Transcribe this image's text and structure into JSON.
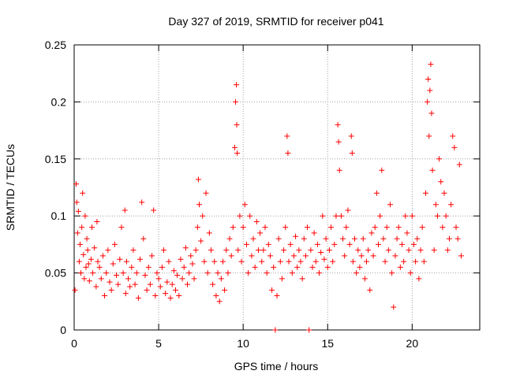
{
  "chart_data": {
    "type": "scatter",
    "title": "Day 327 of 2019, SRMTID for receiver p041",
    "xlabel": "GPS time / hours",
    "ylabel": "SRMTID / TECUs",
    "xlim": [
      0,
      24
    ],
    "ylim": [
      0,
      0.25
    ],
    "x_ticks": [
      0,
      5,
      10,
      15,
      20
    ],
    "x_tick_labels": [
      "0",
      "5",
      "10",
      "15",
      "20"
    ],
    "y_ticks": [
      0,
      0.05,
      0.1,
      0.15,
      0.2,
      0.25
    ],
    "y_tick_labels": [
      "0",
      "0.05",
      "0.1",
      "0.15",
      "0.2",
      "0.25"
    ],
    "grid": true,
    "marker": "+",
    "color": "#ff0000",
    "series": [
      {
        "name": "SRMTID",
        "points": [
          [
            0.05,
            0.035
          ],
          [
            0.12,
            0.128
          ],
          [
            0.15,
            0.112
          ],
          [
            0.2,
            0.085
          ],
          [
            0.25,
            0.104
          ],
          [
            0.3,
            0.06
          ],
          [
            0.35,
            0.075
          ],
          [
            0.4,
            0.05
          ],
          [
            0.45,
            0.09
          ],
          [
            0.5,
            0.12
          ],
          [
            0.55,
            0.066
          ],
          [
            0.6,
            0.045
          ],
          [
            0.65,
            0.1
          ],
          [
            0.7,
            0.055
          ],
          [
            0.75,
            0.08
          ],
          [
            0.8,
            0.07
          ],
          [
            0.85,
            0.058
          ],
          [
            0.9,
            0.043
          ],
          [
            1.0,
            0.062
          ],
          [
            1.05,
            0.09
          ],
          [
            1.1,
            0.05
          ],
          [
            1.2,
            0.072
          ],
          [
            1.3,
            0.038
          ],
          [
            1.35,
            0.095
          ],
          [
            1.4,
            0.06
          ],
          [
            1.5,
            0.055
          ],
          [
            1.6,
            0.045
          ],
          [
            1.7,
            0.065
          ],
          [
            1.8,
            0.03
          ],
          [
            1.9,
            0.05
          ],
          [
            2.0,
            0.07
          ],
          [
            2.1,
            0.042
          ],
          [
            2.2,
            0.035
          ],
          [
            2.3,
            0.058
          ],
          [
            2.4,
            0.075
          ],
          [
            2.5,
            0.048
          ],
          [
            2.6,
            0.04
          ],
          [
            2.7,
            0.062
          ],
          [
            2.8,
            0.09
          ],
          [
            2.9,
            0.05
          ],
          [
            3.0,
            0.105
          ],
          [
            3.05,
            0.032
          ],
          [
            3.1,
            0.06
          ],
          [
            3.2,
            0.045
          ],
          [
            3.3,
            0.038
          ],
          [
            3.4,
            0.055
          ],
          [
            3.5,
            0.07
          ],
          [
            3.6,
            0.04
          ],
          [
            3.7,
            0.05
          ],
          [
            3.8,
            0.028
          ],
          [
            3.9,
            0.062
          ],
          [
            4.0,
            0.112
          ],
          [
            4.1,
            0.08
          ],
          [
            4.2,
            0.048
          ],
          [
            4.3,
            0.035
          ],
          [
            4.4,
            0.055
          ],
          [
            4.5,
            0.04
          ],
          [
            4.6,
            0.065
          ],
          [
            4.7,
            0.105
          ],
          [
            4.8,
            0.03
          ],
          [
            4.9,
            0.05
          ],
          [
            5.0,
            0.045
          ],
          [
            5.1,
            0.038
          ],
          [
            5.2,
            0.055
          ],
          [
            5.3,
            0.07
          ],
          [
            5.4,
            0.032
          ],
          [
            5.5,
            0.042
          ],
          [
            5.6,
            0.06
          ],
          [
            5.7,
            0.028
          ],
          [
            5.8,
            0.04
          ],
          [
            5.9,
            0.052
          ],
          [
            6.0,
            0.035
          ],
          [
            6.1,
            0.048
          ],
          [
            6.2,
            0.03
          ],
          [
            6.3,
            0.062
          ],
          [
            6.4,
            0.045
          ],
          [
            6.5,
            0.055
          ],
          [
            6.6,
            0.072
          ],
          [
            6.7,
            0.04
          ],
          [
            6.8,
            0.05
          ],
          [
            6.9,
            0.065
          ],
          [
            7.0,
            0.058
          ],
          [
            7.1,
            0.045
          ],
          [
            7.2,
            0.07
          ],
          [
            7.3,
            0.09
          ],
          [
            7.35,
            0.132
          ],
          [
            7.4,
            0.11
          ],
          [
            7.5,
            0.078
          ],
          [
            7.6,
            0.1
          ],
          [
            7.7,
            0.06
          ],
          [
            7.8,
            0.12
          ],
          [
            7.9,
            0.05
          ],
          [
            8.0,
            0.085
          ],
          [
            8.1,
            0.07
          ],
          [
            8.2,
            0.04
          ],
          [
            8.3,
            0.06
          ],
          [
            8.4,
            0.03
          ],
          [
            8.5,
            0.05
          ],
          [
            8.6,
            0.025
          ],
          [
            8.7,
            0.045
          ],
          [
            8.8,
            0.06
          ],
          [
            8.9,
            0.035
          ],
          [
            9.0,
            0.07
          ],
          [
            9.1,
            0.05
          ],
          [
            9.2,
            0.08
          ],
          [
            9.3,
            0.065
          ],
          [
            9.4,
            0.09
          ],
          [
            9.5,
            0.16
          ],
          [
            9.55,
            0.2
          ],
          [
            9.6,
            0.215
          ],
          [
            9.62,
            0.18
          ],
          [
            9.65,
            0.155
          ],
          [
            9.7,
            0.07
          ],
          [
            9.8,
            0.1
          ],
          [
            9.9,
            0.06
          ],
          [
            10.0,
            0.09
          ],
          [
            10.1,
            0.11
          ],
          [
            10.2,
            0.075
          ],
          [
            10.3,
            0.05
          ],
          [
            10.4,
            0.1
          ],
          [
            10.5,
            0.065
          ],
          [
            10.6,
            0.08
          ],
          [
            10.7,
            0.055
          ],
          [
            10.8,
            0.095
          ],
          [
            10.9,
            0.07
          ],
          [
            11.0,
            0.085
          ],
          [
            11.1,
            0.06
          ],
          [
            11.2,
            0.07
          ],
          [
            11.3,
            0.09
          ],
          [
            11.4,
            0.05
          ],
          [
            11.5,
            0.075
          ],
          [
            11.6,
            0.065
          ],
          [
            11.7,
            0.035
          ],
          [
            11.8,
            0.055
          ],
          [
            11.9,
            0.0
          ],
          [
            12.0,
            0.03
          ],
          [
            12.1,
            0.08
          ],
          [
            12.2,
            0.06
          ],
          [
            12.3,
            0.045
          ],
          [
            12.4,
            0.07
          ],
          [
            12.5,
            0.09
          ],
          [
            12.6,
            0.17
          ],
          [
            12.65,
            0.155
          ],
          [
            12.7,
            0.06
          ],
          [
            12.8,
            0.075
          ],
          [
            12.9,
            0.05
          ],
          [
            13.0,
            0.065
          ],
          [
            13.1,
            0.082
          ],
          [
            13.2,
            0.055
          ],
          [
            13.3,
            0.07
          ],
          [
            13.4,
            0.06
          ],
          [
            13.5,
            0.045
          ],
          [
            13.6,
            0.08
          ],
          [
            13.7,
            0.065
          ],
          [
            13.8,
            0.09
          ],
          [
            13.9,
            0.0
          ],
          [
            14.0,
            0.07
          ],
          [
            14.1,
            0.055
          ],
          [
            14.2,
            0.085
          ],
          [
            14.3,
            0.06
          ],
          [
            14.4,
            0.075
          ],
          [
            14.5,
            0.05
          ],
          [
            14.6,
            0.068
          ],
          [
            14.7,
            0.1
          ],
          [
            14.8,
            0.062
          ],
          [
            14.9,
            0.08
          ],
          [
            15.0,
            0.055
          ],
          [
            15.1,
            0.07
          ],
          [
            15.2,
            0.09
          ],
          [
            15.3,
            0.06
          ],
          [
            15.4,
            0.075
          ],
          [
            15.5,
            0.1
          ],
          [
            15.6,
            0.18
          ],
          [
            15.65,
            0.165
          ],
          [
            15.7,
            0.14
          ],
          [
            15.8,
            0.1
          ],
          [
            15.9,
            0.08
          ],
          [
            16.0,
            0.065
          ],
          [
            16.1,
            0.09
          ],
          [
            16.2,
            0.105
          ],
          [
            16.3,
            0.075
          ],
          [
            16.4,
            0.17
          ],
          [
            16.45,
            0.155
          ],
          [
            16.5,
            0.06
          ],
          [
            16.6,
            0.08
          ],
          [
            16.7,
            0.05
          ],
          [
            16.8,
            0.07
          ],
          [
            16.9,
            0.055
          ],
          [
            17.0,
            0.065
          ],
          [
            17.1,
            0.08
          ],
          [
            17.2,
            0.045
          ],
          [
            17.3,
            0.06
          ],
          [
            17.4,
            0.07
          ],
          [
            17.5,
            0.035
          ],
          [
            17.6,
            0.085
          ],
          [
            17.7,
            0.065
          ],
          [
            17.8,
            0.09
          ],
          [
            17.9,
            0.12
          ],
          [
            18.0,
            0.075
          ],
          [
            18.1,
            0.1
          ],
          [
            18.2,
            0.14
          ],
          [
            18.3,
            0.08
          ],
          [
            18.4,
            0.06
          ],
          [
            18.5,
            0.09
          ],
          [
            18.6,
            0.07
          ],
          [
            18.7,
            0.11
          ],
          [
            18.8,
            0.05
          ],
          [
            18.9,
            0.02
          ],
          [
            19.0,
            0.065
          ],
          [
            19.1,
            0.08
          ],
          [
            19.2,
            0.09
          ],
          [
            19.3,
            0.055
          ],
          [
            19.4,
            0.075
          ],
          [
            19.5,
            0.06
          ],
          [
            19.6,
            0.1
          ],
          [
            19.7,
            0.085
          ],
          [
            19.8,
            0.07
          ],
          [
            19.9,
            0.05
          ],
          [
            20.0,
            0.1
          ],
          [
            20.1,
            0.075
          ],
          [
            20.2,
            0.06
          ],
          [
            20.3,
            0.08
          ],
          [
            20.4,
            0.045
          ],
          [
            20.5,
            0.07
          ],
          [
            20.6,
            0.09
          ],
          [
            20.7,
            0.06
          ],
          [
            20.8,
            0.12
          ],
          [
            20.9,
            0.2
          ],
          [
            20.95,
            0.22
          ],
          [
            21.0,
            0.17
          ],
          [
            21.05,
            0.21
          ],
          [
            21.1,
            0.233
          ],
          [
            21.15,
            0.19
          ],
          [
            21.2,
            0.14
          ],
          [
            21.3,
            0.07
          ],
          [
            21.4,
            0.11
          ],
          [
            21.5,
            0.1
          ],
          [
            21.6,
            0.15
          ],
          [
            21.7,
            0.13
          ],
          [
            21.8,
            0.09
          ],
          [
            21.9,
            0.12
          ],
          [
            22.0,
            0.1
          ],
          [
            22.1,
            0.07
          ],
          [
            22.2,
            0.08
          ],
          [
            22.3,
            0.11
          ],
          [
            22.4,
            0.17
          ],
          [
            22.5,
            0.16
          ],
          [
            22.6,
            0.09
          ],
          [
            22.7,
            0.08
          ],
          [
            22.8,
            0.145
          ],
          [
            22.9,
            0.065
          ]
        ]
      }
    ]
  }
}
